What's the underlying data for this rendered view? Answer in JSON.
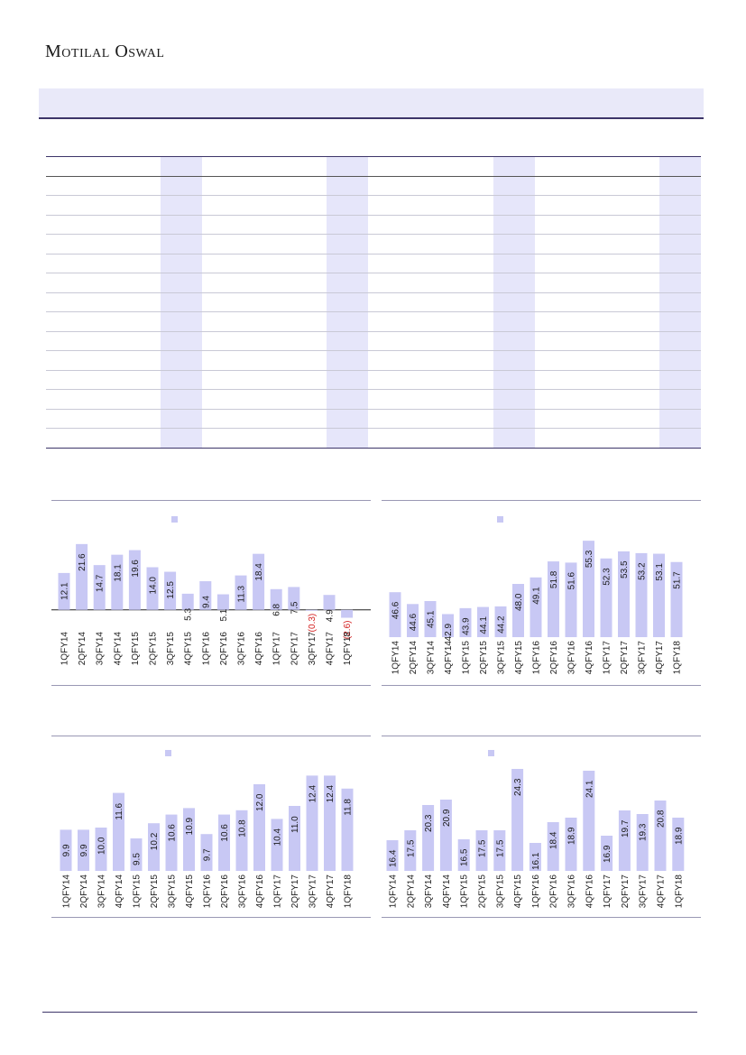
{
  "header": {
    "brand": "Motilal Oswal"
  },
  "colors": {
    "bar": "#c8c8f4",
    "negative_label": "#d42020",
    "rule": "#3d3569",
    "band": "#e9e9f9"
  },
  "chart_data": [
    {
      "type": "bar",
      "categories": [
        "1QFY14",
        "2QFY14",
        "3QFY14",
        "4QFY14",
        "1QFY15",
        "2QFY15",
        "3QFY15",
        "4QFY15",
        "1QFY16",
        "2QFY16",
        "3QFY16",
        "4QFY16",
        "1QFY17",
        "2QFY17",
        "3QFY17",
        "4QFY17",
        "1QFY18"
      ],
      "values": [
        12.1,
        21.6,
        14.7,
        18.1,
        19.6,
        14.0,
        12.5,
        5.3,
        9.4,
        5.1,
        11.3,
        18.4,
        6.8,
        7.5,
        -0.3,
        4.9,
        -2.6
      ],
      "value_labels": [
        "12.1",
        "21.6",
        "14.7",
        "18.1",
        "19.6",
        "14.0",
        "12.5",
        "5.3",
        "9.4",
        "5.1",
        "11.3",
        "18.4",
        "6.8",
        "7.5",
        "(0.3)",
        "4.9",
        "(2.6)"
      ],
      "ylim": [
        -6,
        26
      ]
    },
    {
      "type": "bar",
      "categories": [
        "1QFY14",
        "2QFY14",
        "3QFY14",
        "4QFY14",
        "1QFY15",
        "2QFY15",
        "3QFY15",
        "4QFY15",
        "1QFY16",
        "2QFY16",
        "3QFY16",
        "4QFY16",
        "1QFY17",
        "2QFY17",
        "3QFY17",
        "4QFY17",
        "1QFY18"
      ],
      "values": [
        46.6,
        44.6,
        45.1,
        42.9,
        43.9,
        44.1,
        44.2,
        48.0,
        49.1,
        51.8,
        51.6,
        55.3,
        52.3,
        53.5,
        53.2,
        53.1,
        51.7
      ],
      "value_labels": [
        "46.6",
        "44.6",
        "45.1",
        "42.9",
        "43.9",
        "44.1",
        "44.2",
        "48.0",
        "49.1",
        "51.8",
        "51.6",
        "55.3",
        "52.3",
        "53.5",
        "53.2",
        "53.1",
        "51.7"
      ],
      "ylim": [
        39,
        57
      ]
    },
    {
      "type": "bar",
      "categories": [
        "1QFY14",
        "2QFY14",
        "3QFY14",
        "4QFY14",
        "1QFY15",
        "2QFY15",
        "3QFY15",
        "4QFY15",
        "1QFY16",
        "2QFY16",
        "3QFY16",
        "4QFY16",
        "1QFY17",
        "2QFY17",
        "3QFY17",
        "4QFY17",
        "1QFY18"
      ],
      "values": [
        9.9,
        9.9,
        10.0,
        11.6,
        9.5,
        10.2,
        10.6,
        10.9,
        9.7,
        10.6,
        10.8,
        12.0,
        10.4,
        11.0,
        12.4,
        12.4,
        11.8
      ],
      "value_labels": [
        "9.9",
        "9.9",
        "10.0",
        "11.6",
        "9.5",
        "10.2",
        "10.6",
        "10.9",
        "9.7",
        "10.6",
        "10.8",
        "12.0",
        "10.4",
        "11.0",
        "12.4",
        "12.4",
        "11.8"
      ],
      "ylim": [
        8,
        13
      ]
    },
    {
      "type": "bar",
      "categories": [
        "1QFY14",
        "2QFY14",
        "3QFY14",
        "4QFY14",
        "1QFY15",
        "2QFY15",
        "3QFY15",
        "4QFY15",
        "1QFY16",
        "2QFY16",
        "3QFY16",
        "4QFY16",
        "1QFY17",
        "2QFY17",
        "3QFY17",
        "4QFY17",
        "1QFY18"
      ],
      "values": [
        16.4,
        17.5,
        20.3,
        20.9,
        16.5,
        17.5,
        17.5,
        24.3,
        16.1,
        18.4,
        18.9,
        24.1,
        16.9,
        19.7,
        19.3,
        20.8,
        18.9
      ],
      "value_labels": [
        "16.4",
        "17.5",
        "20.3",
        "20.9",
        "16.5",
        "17.5",
        "17.5",
        "24.3",
        "16.1",
        "18.4",
        "18.9",
        "24.1",
        "16.9",
        "19.7",
        "19.3",
        "20.8",
        "18.9"
      ],
      "ylim": [
        13,
        25
      ]
    }
  ]
}
